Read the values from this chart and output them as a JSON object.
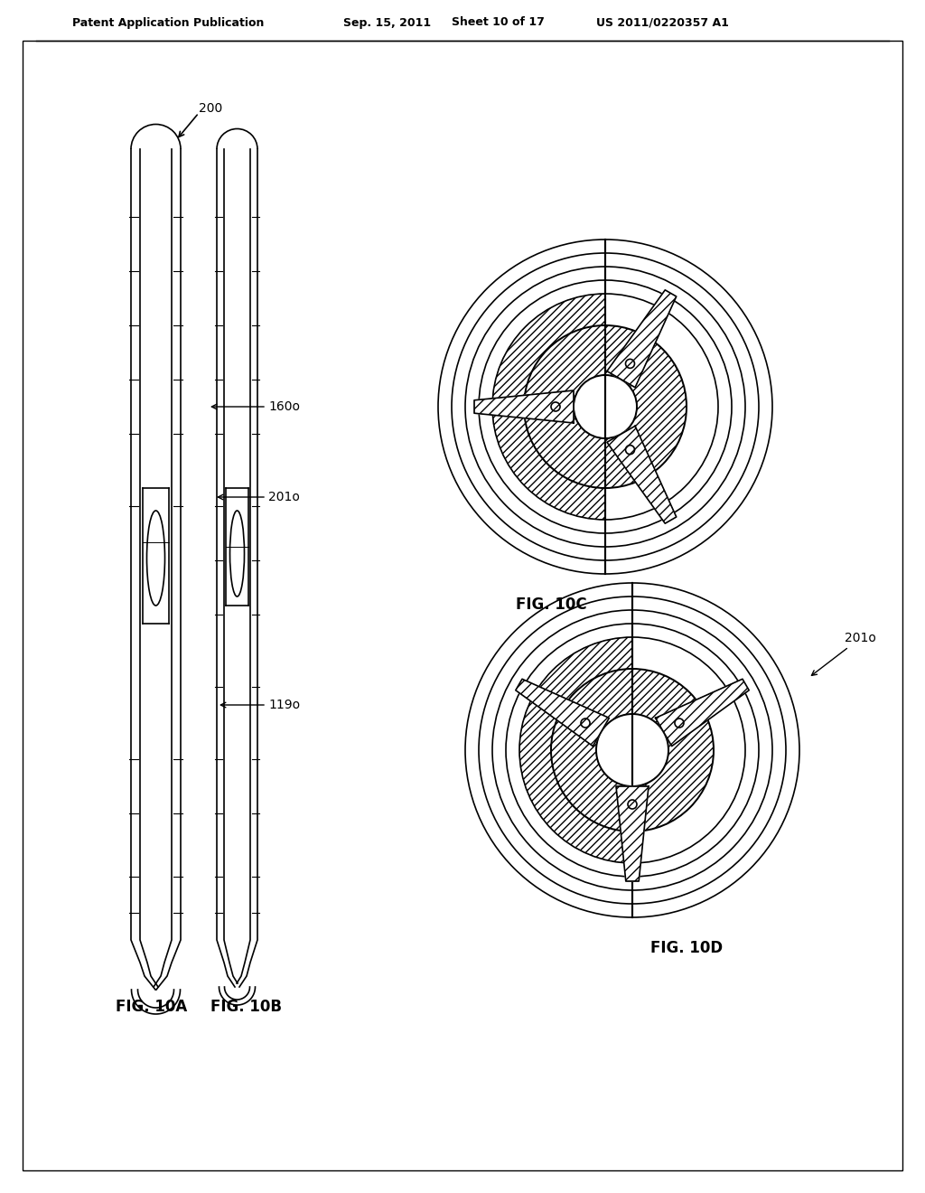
{
  "bg_color": "#ffffff",
  "header_text": "Patent Application Publication",
  "header_date": "Sep. 15, 2011",
  "header_sheet": "Sheet 10 of 17",
  "header_patent": "US 2011/0220357 A1",
  "fig_labels": [
    "FIG. 10A",
    "FIG. 10B",
    "FIG. 10C",
    "FIG. 10D"
  ],
  "ref_labels": [
    "200",
    "160o",
    "201o",
    "119o",
    "201o"
  ],
  "line_color": "#000000",
  "hatch_color": "#000000"
}
